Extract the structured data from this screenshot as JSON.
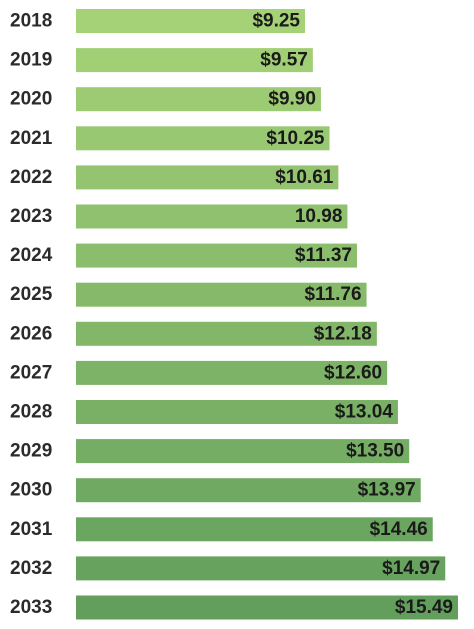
{
  "chart_data": {
    "type": "bar",
    "orientation": "horizontal",
    "categories": [
      "2018",
      "2019",
      "2020",
      "2021",
      "2022",
      "2023",
      "2024",
      "2025",
      "2026",
      "2027",
      "2028",
      "2029",
      "2030",
      "2031",
      "2032",
      "2033"
    ],
    "values": [
      9.25,
      9.57,
      9.9,
      10.25,
      10.61,
      10.98,
      11.37,
      11.76,
      12.18,
      12.6,
      13.04,
      13.5,
      13.97,
      14.46,
      14.97,
      15.49
    ],
    "value_labels": [
      "$9.25",
      "$9.57",
      "$9.90",
      "$10.25",
      "$10.61",
      "10.98",
      "$11.37",
      "$11.76",
      "$12.18",
      "$12.60",
      "$13.04",
      "$13.50",
      "$13.97",
      "$14.46",
      "$14.97",
      "$15.49"
    ],
    "title": "",
    "xlabel": "",
    "ylabel": "",
    "grid": false,
    "legend": "none",
    "colors": {
      "bar_start": "#a6d277",
      "bar_end": "#629f5c",
      "category_text": "#2b2b2b",
      "value_text": "#1a1a1a"
    }
  }
}
